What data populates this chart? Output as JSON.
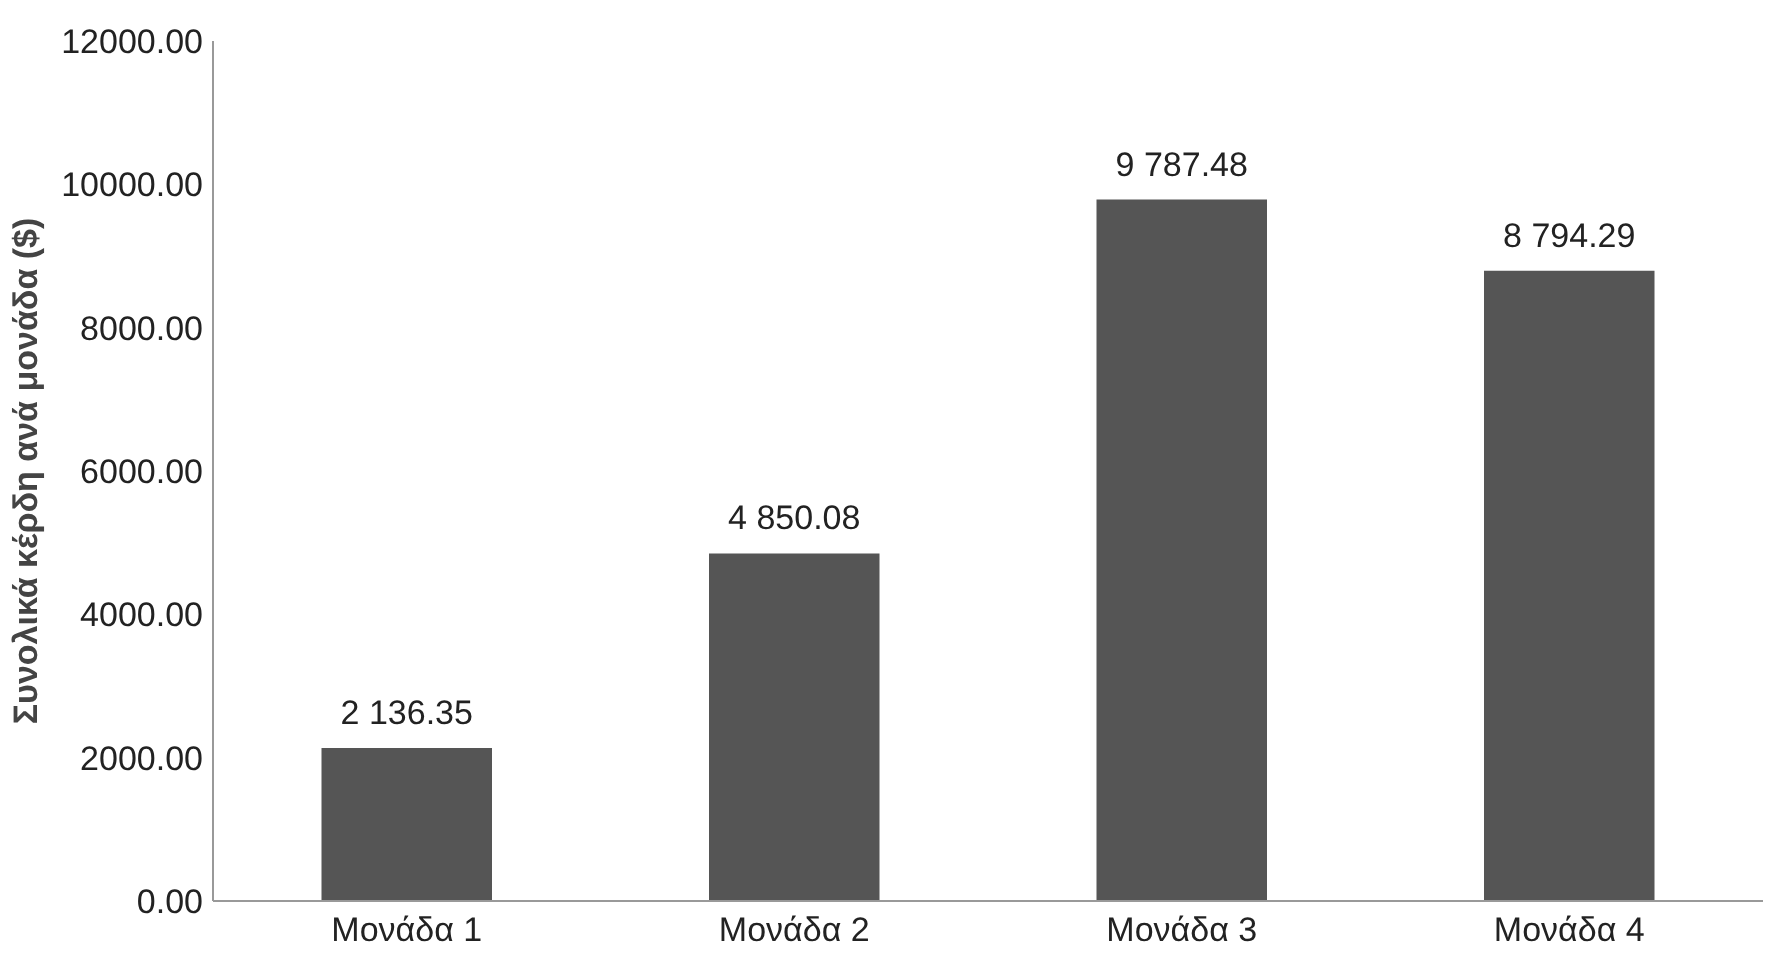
{
  "chart_data": {
    "type": "bar",
    "ylabel": "Συνολικά κέρδη ανά μονάδα ($)",
    "categories": [
      "Μονάδα 1",
      "Μονάδα 2",
      "Μονάδα 3",
      "Μονάδα 4"
    ],
    "values": [
      2136.35,
      4850.08,
      9787.48,
      8794.29
    ],
    "value_labels": [
      "2 136.35",
      "4 850.08",
      "9 787.48",
      "8 794.29"
    ],
    "color": "#555555",
    "ylim": [
      0,
      12000
    ],
    "yticks": [
      {
        "value": 0,
        "label": "0.00"
      },
      {
        "value": 2000,
        "label": "2000.00"
      },
      {
        "value": 4000,
        "label": "4000.00"
      },
      {
        "value": 6000,
        "label": "6000.00"
      },
      {
        "value": 8000,
        "label": "8000.00"
      },
      {
        "value": 10000,
        "label": "10000.00"
      },
      {
        "value": 12000,
        "label": "12000.00"
      }
    ],
    "grid": false
  }
}
